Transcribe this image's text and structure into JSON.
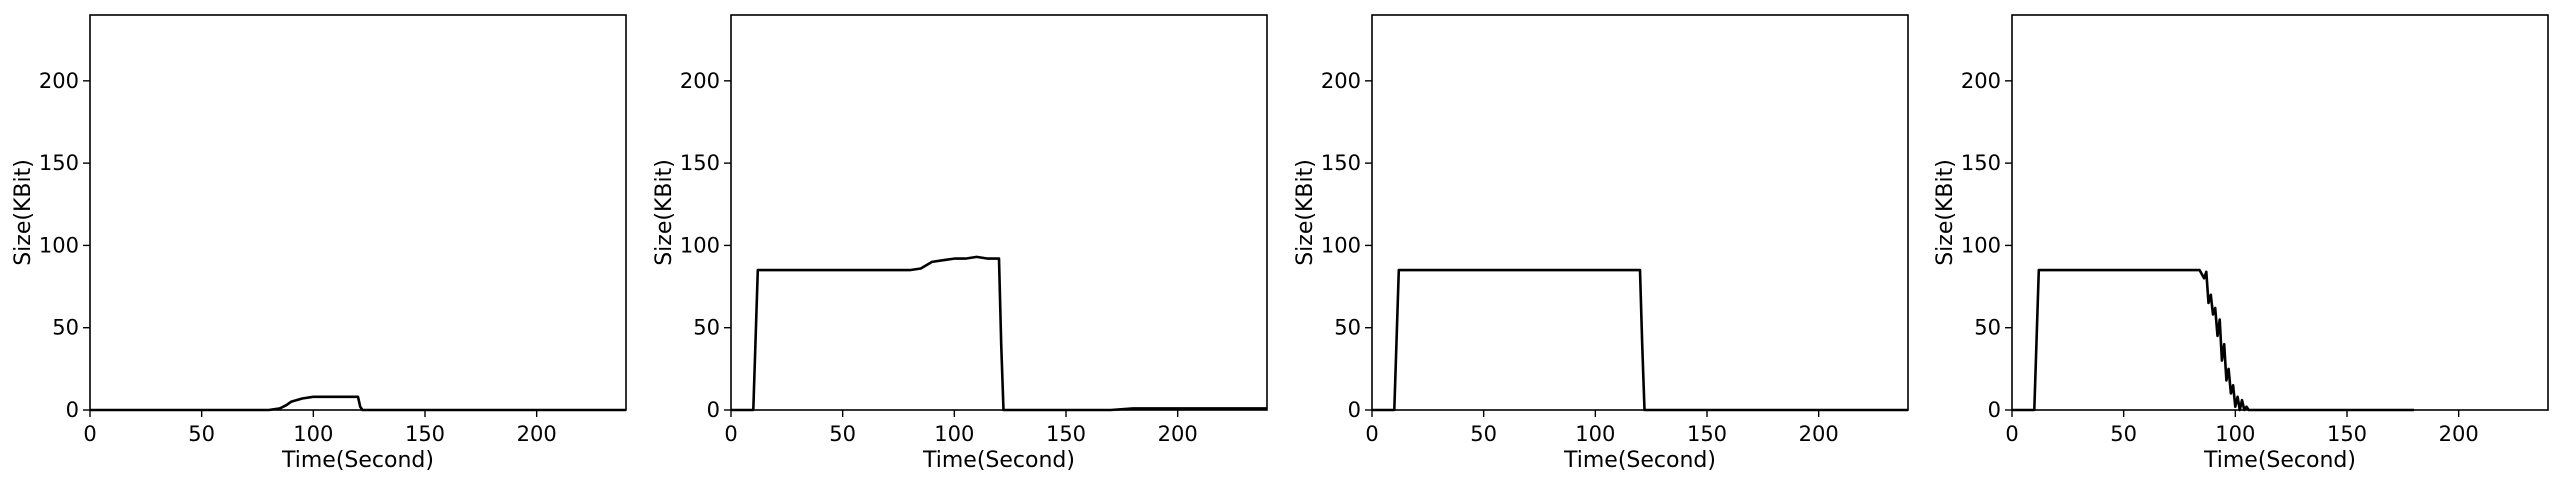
{
  "chart_data": [
    {
      "type": "line",
      "xlabel": "Time(Second)",
      "ylabel": "Size(KBit)",
      "xlim": [
        0,
        240
      ],
      "ylim": [
        0,
        240
      ],
      "xticks": [
        0,
        50,
        100,
        150,
        200
      ],
      "yticks": [
        0,
        50,
        100,
        150,
        200
      ],
      "grid": false,
      "series": [
        {
          "x": [
            0,
            10,
            20,
            30,
            40,
            50,
            60,
            70,
            80,
            85,
            88,
            90,
            95,
            100,
            105,
            110,
            115,
            120,
            121,
            122,
            130,
            150,
            170,
            200,
            230,
            240
          ],
          "y": [
            0,
            0,
            0,
            0,
            0,
            0,
            0,
            0,
            0,
            1,
            3,
            5,
            7,
            8,
            8,
            8,
            8,
            8,
            2,
            0,
            0,
            0,
            0,
            0,
            0,
            0
          ]
        }
      ]
    },
    {
      "type": "line",
      "xlabel": "Time(Second)",
      "ylabel": "Size(KBit)",
      "xlim": [
        0,
        240
      ],
      "ylim": [
        0,
        240
      ],
      "xticks": [
        0,
        50,
        100,
        150,
        200
      ],
      "yticks": [
        0,
        50,
        100,
        150,
        200
      ],
      "grid": false,
      "series": [
        {
          "x": [
            0,
            8,
            10,
            12,
            20,
            30,
            40,
            50,
            60,
            70,
            80,
            85,
            90,
            95,
            100,
            105,
            110,
            115,
            120,
            121,
            122,
            130,
            150,
            170,
            180,
            200,
            220,
            240
          ],
          "y": [
            0,
            0,
            0,
            85,
            85,
            85,
            85,
            85,
            85,
            85,
            85,
            86,
            90,
            91,
            92,
            92,
            93,
            92,
            92,
            40,
            0,
            0,
            0,
            0,
            1,
            1,
            1,
            1
          ]
        }
      ]
    },
    {
      "type": "line",
      "xlabel": "Time(Second)",
      "ylabel": "Size(KBit)",
      "xlim": [
        0,
        240
      ],
      "ylim": [
        0,
        240
      ],
      "xticks": [
        0,
        50,
        100,
        150,
        200
      ],
      "yticks": [
        0,
        50,
        100,
        150,
        200
      ],
      "grid": false,
      "series": [
        {
          "x": [
            0,
            8,
            10,
            12,
            20,
            30,
            40,
            50,
            60,
            70,
            80,
            90,
            100,
            110,
            120,
            121,
            122,
            130,
            150,
            170,
            200,
            220,
            240
          ],
          "y": [
            0,
            0,
            0,
            85,
            85,
            85,
            85,
            85,
            85,
            85,
            85,
            85,
            85,
            85,
            85,
            40,
            0,
            0,
            0,
            0,
            0,
            0,
            0
          ]
        }
      ]
    },
    {
      "type": "line",
      "xlabel": "Time(Second)",
      "ylabel": "Size(KBit)",
      "xlim": [
        0,
        240
      ],
      "ylim": [
        0,
        240
      ],
      "xticks": [
        0,
        50,
        100,
        150,
        200
      ],
      "yticks": [
        0,
        50,
        100,
        150,
        200
      ],
      "grid": false,
      "series": [
        {
          "x": [
            0,
            8,
            10,
            12,
            20,
            30,
            40,
            50,
            60,
            70,
            80,
            84,
            86,
            87,
            88,
            89,
            90,
            91,
            92,
            93,
            94,
            95,
            96,
            97,
            98,
            99,
            100,
            101,
            102,
            103,
            104,
            105,
            106,
            110,
            120,
            140,
            160,
            180
          ],
          "y": [
            0,
            0,
            0,
            85,
            85,
            85,
            85,
            85,
            85,
            85,
            85,
            85,
            80,
            84,
            65,
            70,
            58,
            62,
            45,
            55,
            30,
            40,
            18,
            25,
            10,
            15,
            2,
            8,
            0,
            6,
            0,
            2,
            0,
            0,
            0,
            0,
            0,
            0
          ]
        }
      ]
    }
  ]
}
